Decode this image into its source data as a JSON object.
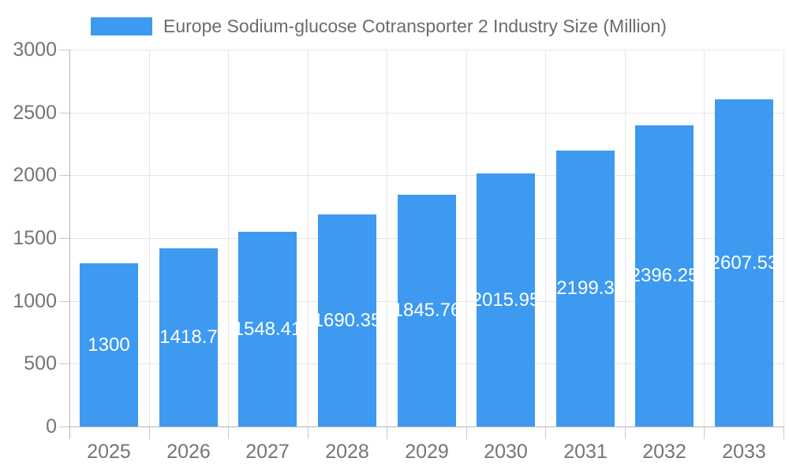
{
  "legend": {
    "label": "Europe Sodium-glucose Cotransporter 2 Industry Size (Million)",
    "swatch_color": "#3d9af0"
  },
  "chart_data": {
    "type": "bar",
    "title": "Europe Sodium-glucose Cotransporter 2 Industry Size (Million)",
    "categories": [
      "2025",
      "2026",
      "2027",
      "2028",
      "2029",
      "2030",
      "2031",
      "2032",
      "2033"
    ],
    "values": [
      1300,
      1418.7,
      1548.41,
      1690.35,
      1845.76,
      2015.95,
      2199.3,
      2396.25,
      2607.53
    ],
    "xlabel": "",
    "ylabel": "",
    "ylim": [
      0,
      3000
    ],
    "yticks": [
      0,
      500,
      1000,
      1500,
      2000,
      2500,
      3000
    ],
    "grid": true,
    "legend_position": "top",
    "bar_color": "#3d9af0",
    "bar_value_label_color": "#ffffff",
    "axis_label_color": "#757575",
    "gridline_color": "#e6e6e6",
    "axis_line_color": "#b6b6b6"
  }
}
